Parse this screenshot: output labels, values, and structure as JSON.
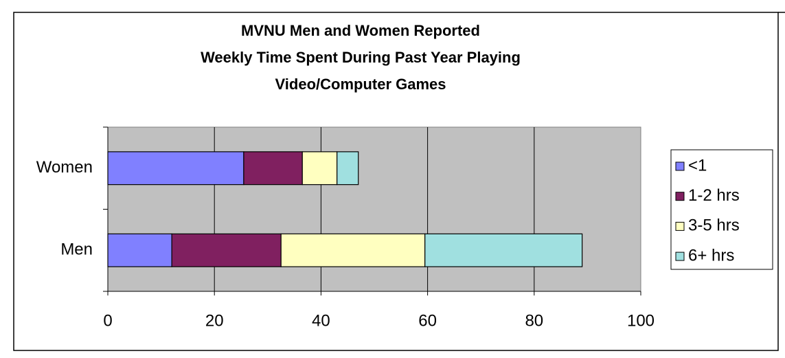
{
  "chart_data": {
    "type": "stacked-bar-horizontal",
    "title": [
      "MVNU Men and Women Reported",
      "Weekly Time Spent During Past Year Playing",
      "Video/Computer Games"
    ],
    "categories": [
      "Women",
      "Men"
    ],
    "series": [
      {
        "name": "<1",
        "color": "#8080ff",
        "values": [
          25.5,
          12
        ]
      },
      {
        "name": "1-2 hrs",
        "color": "#802060",
        "values": [
          11,
          20.5
        ]
      },
      {
        "name": "3-5 hrs",
        "color": "#ffffc0",
        "values": [
          6.5,
          27
        ]
      },
      {
        "name": "6+ hrs",
        "color": "#a0e0e0",
        "values": [
          4,
          29.5
        ]
      }
    ],
    "xlim": [
      0,
      100
    ],
    "xticks": [
      0,
      20,
      40,
      60,
      80,
      100
    ],
    "grid": true,
    "legend": "right"
  }
}
